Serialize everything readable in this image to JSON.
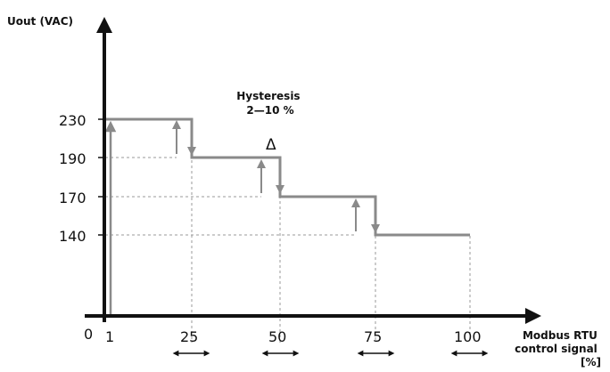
{
  "diagram": {
    "y_axis_label": "Uout (VAC)",
    "origin_label": "0",
    "x_axis_label_lines": [
      "Modbus RTU",
      "control signal",
      "[%]"
    ],
    "hysteresis_lines": [
      "Hysteresis",
      "2—10 %"
    ],
    "delta_symbol": "Δ",
    "y_ticks": [
      "230",
      "190",
      "170",
      "140"
    ],
    "x_ticks": [
      "1",
      "25",
      "50",
      "75",
      "100"
    ],
    "colors": {
      "axis": "#111111",
      "step_line": "#8a8a8a",
      "dashed_guide": "#9a9a9a",
      "text": "#111111"
    },
    "icons": [
      "up-arrow-icon",
      "down-arrow-icon",
      "double-headed-arrow-icon"
    ]
  }
}
